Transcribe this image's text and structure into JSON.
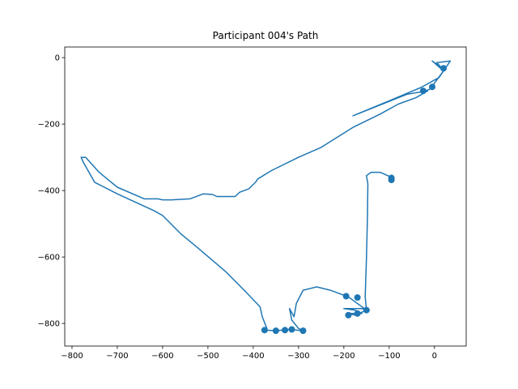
{
  "chart_data": {
    "type": "line",
    "title": "Participant 004's Path",
    "xlim": [
      -816,
      70
    ],
    "ylim": [
      -868,
      32
    ],
    "xticks": [
      {
        "value": -800,
        "label": "−800"
      },
      {
        "value": -700,
        "label": "−700"
      },
      {
        "value": -600,
        "label": "−600"
      },
      {
        "value": -500,
        "label": "−500"
      },
      {
        "value": -400,
        "label": "−400"
      },
      {
        "value": -300,
        "label": "−300"
      },
      {
        "value": -200,
        "label": "−200"
      },
      {
        "value": -100,
        "label": "−100"
      },
      0
    ],
    "yticks": [
      0,
      {
        "value": -200,
        "label": "−200"
      },
      {
        "value": -400,
        "label": "−400"
      },
      {
        "value": -600,
        "label": "−600"
      },
      {
        "value": -800,
        "label": "−800"
      }
    ],
    "series": [
      {
        "type": "line",
        "color": "#1f77b4",
        "x": [
          -95,
          -97,
          -95,
          -120,
          -140,
          -150,
          -147,
          -148,
          -150,
          -153,
          -150,
          -160,
          -200,
          -175,
          -160,
          -190,
          -175,
          -150,
          -190,
          -230,
          -260,
          -290,
          -305,
          -310,
          -320,
          -315,
          -300,
          -290,
          -320,
          -350,
          -375,
          -370,
          -380,
          -385,
          -420,
          -460,
          -520,
          -560,
          -600,
          -620,
          -700,
          -750,
          -775,
          -780,
          -770,
          -740,
          -700,
          -640,
          -610,
          -600,
          -580,
          -540,
          -510,
          -490,
          -480,
          -440,
          -430,
          -410,
          -395,
          -390,
          -360,
          -300,
          -250,
          -180,
          -120,
          -80,
          -40,
          -15,
          -60,
          -180,
          -100,
          -30,
          10,
          25,
          35,
          5,
          15,
          -5,
          20,
          -10,
          -20
        ],
        "y": [
          -362,
          -368,
          -360,
          -345,
          -345,
          -355,
          -380,
          -480,
          -600,
          -720,
          -760,
          -755,
          -755,
          -760,
          -770,
          -770,
          -775,
          -760,
          -720,
          -700,
          -690,
          -700,
          -740,
          -780,
          -755,
          -790,
          -815,
          -822,
          -818,
          -822,
          -820,
          -815,
          -780,
          -750,
          -700,
          -645,
          -575,
          -530,
          -475,
          -460,
          -410,
          -375,
          -315,
          -300,
          -300,
          -345,
          -390,
          -425,
          -425,
          -428,
          -428,
          -425,
          -410,
          -412,
          -418,
          -418,
          -405,
          -395,
          -375,
          -365,
          -340,
          -300,
          -270,
          -210,
          -170,
          -140,
          -120,
          -100,
          -110,
          -175,
          -130,
          -90,
          -60,
          -30,
          -10,
          -15,
          -30,
          -10,
          -40,
          -95,
          -100
        ]
      },
      {
        "type": "scatter",
        "color": "#1f77b4",
        "x": [
          -95,
          -95,
          20,
          -5,
          -25,
          -195,
          -170,
          -190,
          -170,
          -150,
          -375,
          -350,
          -330,
          -315,
          -290
        ],
        "y": [
          -362,
          -368,
          -32,
          -88,
          -100,
          -718,
          -722,
          -775,
          -770,
          -760,
          -820,
          -822,
          -820,
          -818,
          -822
        ]
      }
    ]
  }
}
